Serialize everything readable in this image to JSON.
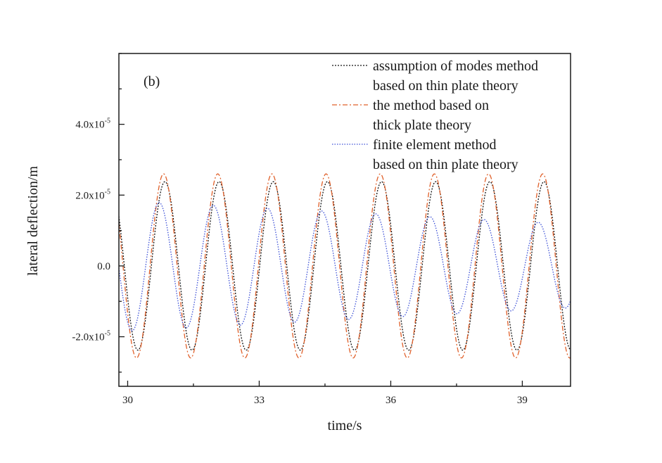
{
  "chart_data": {
    "type": "line",
    "title": "",
    "panel_label": "(b)",
    "xlabel": "time/s",
    "ylabel": "lateral deflection/m",
    "xlim": [
      29.8,
      40.1
    ],
    "ylim": [
      -3.4e-05,
      6e-05
    ],
    "x_ticks": [
      {
        "value": 30,
        "label": "30"
      },
      {
        "value": 33,
        "label": "33"
      },
      {
        "value": 36,
        "label": "36"
      },
      {
        "value": 39,
        "label": "39"
      }
    ],
    "y_ticks": [
      {
        "value": -2e-05,
        "base": "-2.0x10",
        "exp": "-5"
      },
      {
        "value": 0,
        "base": "0.0",
        "exp": ""
      },
      {
        "value": 2e-05,
        "base": "2.0x10",
        "exp": "-5"
      },
      {
        "value": 4e-05,
        "base": "4.0x10",
        "exp": "-5"
      }
    ],
    "grid": false,
    "legend_position": "top-right",
    "series": [
      {
        "legend_lines": [
          "assumption of modes method",
          "based on thin plate theory"
        ],
        "color": "#111111",
        "dash": "2,2",
        "amplitude": 2.38e-05,
        "period": 1.235,
        "peak_time": 30.85,
        "decay": 0.0
      },
      {
        "legend_lines": [
          "the method based on",
          "thick plate theory"
        ],
        "color": "#e0602a",
        "dash": "7,3,2,3",
        "amplitude": 2.6e-05,
        "period": 1.235,
        "peak_time": 30.82,
        "decay": 0.0
      },
      {
        "legend_lines": [
          "finite element method",
          "based on thin plate theory"
        ],
        "color": "#3b4fd6",
        "dash": "1.5,2",
        "amplitude": 1.85e-05,
        "period": 1.235,
        "peak_time": 30.72,
        "decay": 0.0035
      }
    ]
  }
}
